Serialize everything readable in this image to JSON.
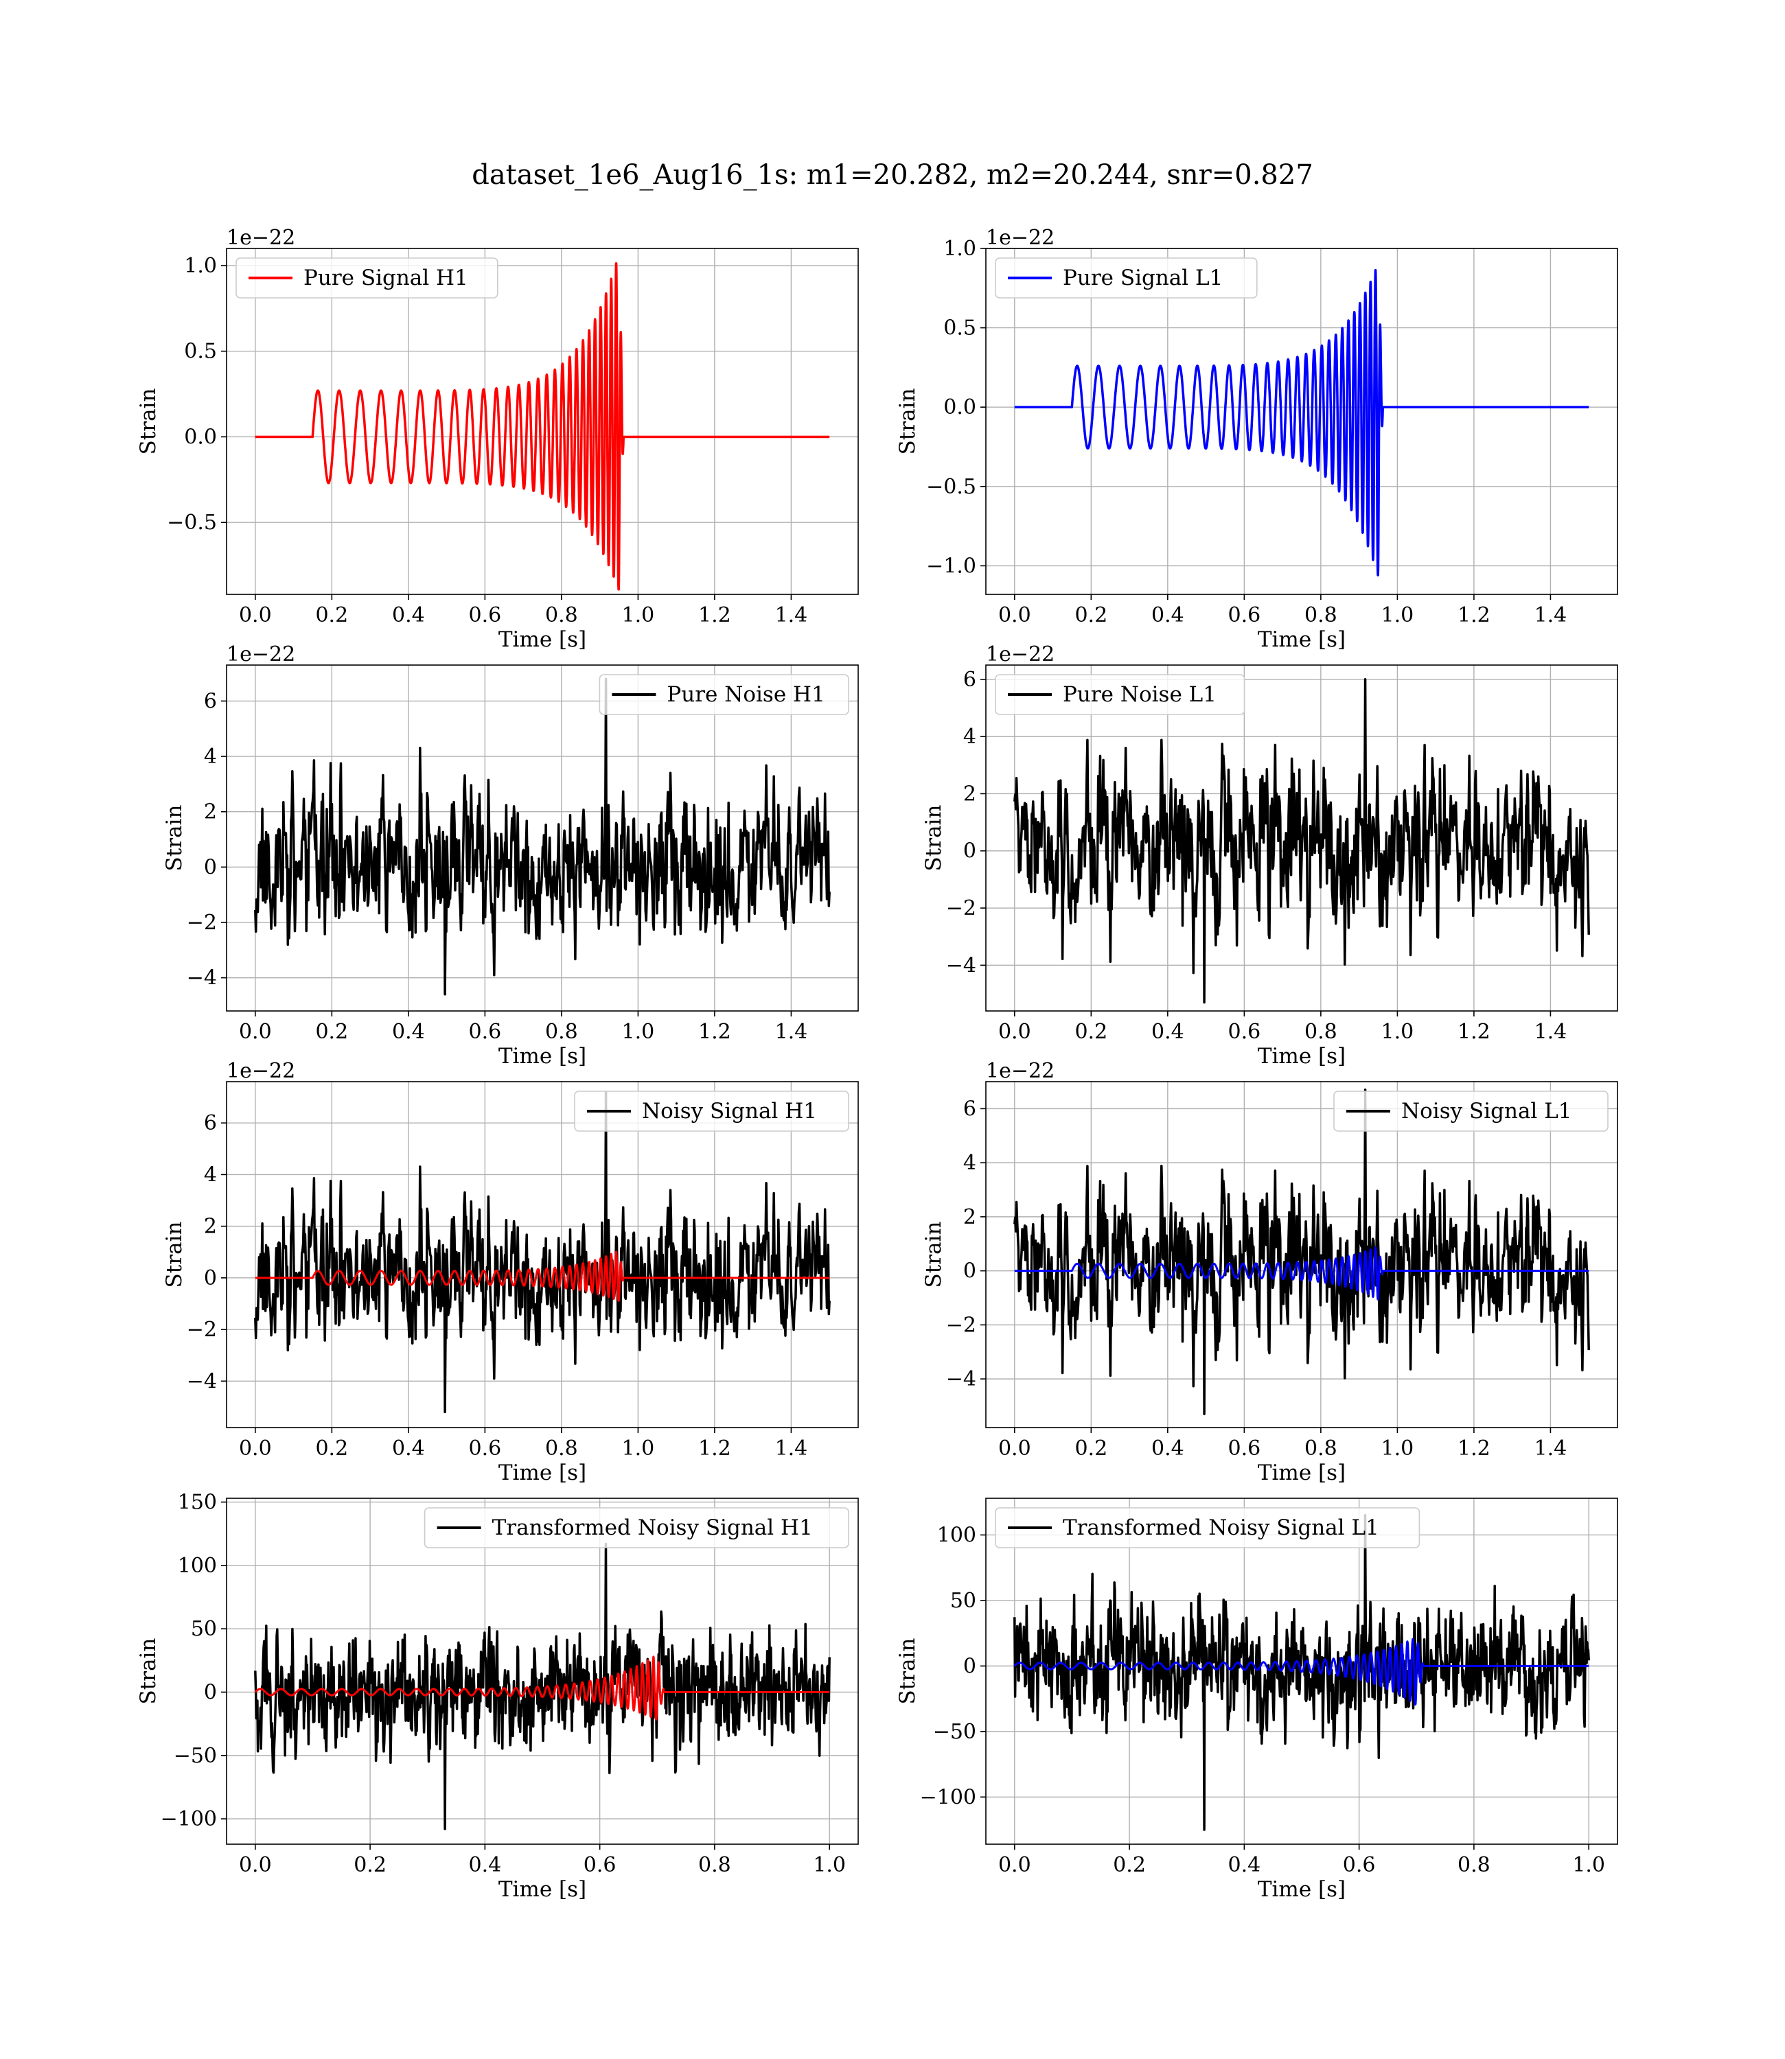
{
  "figure": {
    "title": "dataset_1e6_Aug16_1s: m1=20.282, m2=20.244, snr=0.827"
  },
  "colors": {
    "signal_h1": "#ff0000",
    "signal_l1": "#0000ff",
    "noise": "#000000"
  },
  "chart_data": [
    {
      "type": "line",
      "panel": "row1-left",
      "xlabel": "Time [s]",
      "ylabel": "Strain",
      "offset_text": "1e−22",
      "xlim": [
        -0.075,
        1.575
      ],
      "ylim": [
        -0.92,
        1.1
      ],
      "xticks": [
        0.0,
        0.2,
        0.4,
        0.6,
        0.8,
        1.0,
        1.2,
        1.4
      ],
      "xtick_labels": [
        "0.0",
        "0.2",
        "0.4",
        "0.6",
        "0.8",
        "1.0",
        "1.2",
        "1.4"
      ],
      "yticks": [
        -0.5,
        0.0,
        0.5,
        1.0
      ],
      "ytick_labels": [
        "−0.5",
        "0.0",
        "0.5",
        "1.0"
      ],
      "grid": true,
      "legend_position": "upper-left",
      "series": [
        {
          "name": "Pure Signal H1",
          "color": "#ff0000",
          "kind": "chirp",
          "x_range": [
            0.0,
            1.5
          ],
          "onset": 0.15,
          "merger": 0.95,
          "f_start": 18,
          "f_end": 80,
          "amp_start": 0.27,
          "amp_peak_pos": 1.07,
          "amp_peak_neg": 0.9,
          "width": 3.5
        }
      ]
    },
    {
      "type": "line",
      "panel": "row1-right",
      "xlabel": "Time [s]",
      "ylabel": "Strain",
      "offset_text": "1e−22",
      "xlim": [
        -0.075,
        1.575
      ],
      "ylim": [
        -1.18,
        1.0
      ],
      "xticks": [
        0.0,
        0.2,
        0.4,
        0.6,
        0.8,
        1.0,
        1.2,
        1.4
      ],
      "xtick_labels": [
        "0.0",
        "0.2",
        "0.4",
        "0.6",
        "0.8",
        "1.0",
        "1.2",
        "1.4"
      ],
      "yticks": [
        -1.0,
        -0.5,
        0.0,
        0.5,
        1.0
      ],
      "ytick_labels": [
        "−1.0",
        "−0.5",
        "0.0",
        "0.5",
        "1.0"
      ],
      "grid": true,
      "legend_position": "upper-left",
      "series": [
        {
          "name": "Pure Signal L1",
          "color": "#0000ff",
          "kind": "chirp",
          "x_range": [
            0.0,
            1.5
          ],
          "onset": 0.15,
          "merger": 0.95,
          "f_start": 18,
          "f_end": 80,
          "amp_start": 0.26,
          "amp_peak_pos": 0.91,
          "amp_peak_neg": 1.07,
          "width": 3.5
        }
      ]
    },
    {
      "type": "line",
      "panel": "row2-left",
      "xlabel": "Time [s]",
      "ylabel": "Strain",
      "offset_text": "1e−22",
      "xlim": [
        -0.075,
        1.575
      ],
      "ylim": [
        -5.2,
        7.3
      ],
      "xticks": [
        0.0,
        0.2,
        0.4,
        0.6,
        0.8,
        1.0,
        1.2,
        1.4
      ],
      "xtick_labels": [
        "0.0",
        "0.2",
        "0.4",
        "0.6",
        "0.8",
        "1.0",
        "1.2",
        "1.4"
      ],
      "yticks": [
        -4,
        -2,
        0,
        2,
        4,
        6
      ],
      "ytick_labels": [
        "−4",
        "−2",
        "0",
        "2",
        "4",
        "6"
      ],
      "grid": true,
      "legend_position": "upper-right",
      "series": [
        {
          "name": "Pure Noise H1",
          "color": "#000000",
          "kind": "noise",
          "x_range": [
            0.0,
            1.5
          ],
          "seed": 11,
          "n": 900,
          "min": -4.6,
          "max": 6.8,
          "scale": 1.55,
          "width": 3.5
        }
      ]
    },
    {
      "type": "line",
      "panel": "row2-right",
      "xlabel": "Time [s]",
      "ylabel": "Strain",
      "offset_text": "1e−22",
      "xlim": [
        -0.075,
        1.575
      ],
      "ylim": [
        -5.6,
        6.5
      ],
      "xticks": [
        0.0,
        0.2,
        0.4,
        0.6,
        0.8,
        1.0,
        1.2,
        1.4
      ],
      "xtick_labels": [
        "0.0",
        "0.2",
        "0.4",
        "0.6",
        "0.8",
        "1.0",
        "1.2",
        "1.4"
      ],
      "yticks": [
        -4,
        -2,
        0,
        2,
        4,
        6
      ],
      "ytick_labels": [
        "−4",
        "−2",
        "0",
        "2",
        "4",
        "6"
      ],
      "grid": true,
      "legend_position": "upper-left",
      "series": [
        {
          "name": "Pure Noise L1",
          "color": "#000000",
          "kind": "noise",
          "x_range": [
            0.0,
            1.5
          ],
          "seed": 23,
          "n": 900,
          "min": -5.3,
          "max": 6.0,
          "scale": 1.55,
          "width": 3.5
        }
      ]
    },
    {
      "type": "line",
      "panel": "row3-left",
      "xlabel": "Time [s]",
      "ylabel": "Strain",
      "offset_text": "1e−22",
      "xlim": [
        -0.075,
        1.575
      ],
      "ylim": [
        -5.8,
        7.6
      ],
      "xticks": [
        0.0,
        0.2,
        0.4,
        0.6,
        0.8,
        1.0,
        1.2,
        1.4
      ],
      "xtick_labels": [
        "0.0",
        "0.2",
        "0.4",
        "0.6",
        "0.8",
        "1.0",
        "1.2",
        "1.4"
      ],
      "yticks": [
        -4,
        -2,
        0,
        2,
        4,
        6
      ],
      "ytick_labels": [
        "−4",
        "−2",
        "0",
        "2",
        "4",
        "6"
      ],
      "grid": true,
      "legend_position": "upper-right",
      "series": [
        {
          "name": "Noisy Signal H1",
          "color": "#000000",
          "kind": "noise",
          "x_range": [
            0.0,
            1.5
          ],
          "seed": 11,
          "n": 900,
          "min": -5.2,
          "max": 7.2,
          "scale": 1.55,
          "width": 3.5
        },
        {
          "color": "#ff0000",
          "kind": "chirp",
          "x_range": [
            0.0,
            1.5
          ],
          "onset": 0.15,
          "merger": 0.95,
          "f_start": 18,
          "f_end": 80,
          "amp_start": 0.27,
          "amp_peak_pos": 1.07,
          "amp_peak_neg": 0.9,
          "width": 3.0
        }
      ]
    },
    {
      "type": "line",
      "panel": "row3-right",
      "xlabel": "Time [s]",
      "ylabel": "Strain",
      "offset_text": "1e−22",
      "xlim": [
        -0.075,
        1.575
      ],
      "ylim": [
        -5.8,
        7.0
      ],
      "xticks": [
        0.0,
        0.2,
        0.4,
        0.6,
        0.8,
        1.0,
        1.2,
        1.4
      ],
      "xtick_labels": [
        "0.0",
        "0.2",
        "0.4",
        "0.6",
        "0.8",
        "1.0",
        "1.2",
        "1.4"
      ],
      "yticks": [
        -4,
        -2,
        0,
        2,
        4,
        6
      ],
      "ytick_labels": [
        "−4",
        "−2",
        "0",
        "2",
        "4",
        "6"
      ],
      "grid": true,
      "legend_position": "upper-right",
      "series": [
        {
          "name": "Noisy Signal L1",
          "color": "#000000",
          "kind": "noise",
          "x_range": [
            0.0,
            1.5
          ],
          "seed": 23,
          "n": 900,
          "min": -5.3,
          "max": 6.7,
          "scale": 1.55,
          "width": 3.5
        },
        {
          "color": "#0000ff",
          "kind": "chirp",
          "x_range": [
            0.0,
            1.5
          ],
          "onset": 0.15,
          "merger": 0.95,
          "f_start": 18,
          "f_end": 80,
          "amp_start": 0.26,
          "amp_peak_pos": 0.91,
          "amp_peak_neg": 1.07,
          "width": 3.0
        }
      ]
    },
    {
      "type": "line",
      "panel": "row4-left",
      "xlabel": "Time [s]",
      "ylabel": "Strain",
      "offset_text": "",
      "xlim": [
        -0.05,
        1.05
      ],
      "ylim": [
        -120,
        153
      ],
      "xticks": [
        0.0,
        0.2,
        0.4,
        0.6,
        0.8,
        1.0
      ],
      "xtick_labels": [
        "0.0",
        "0.2",
        "0.4",
        "0.6",
        "0.8",
        "1.0"
      ],
      "yticks": [
        -100,
        -50,
        0,
        50,
        100,
        150
      ],
      "ytick_labels": [
        "−100",
        "−50",
        "0",
        "50",
        "100",
        "150"
      ],
      "grid": true,
      "legend_position": "upper-right",
      "series": [
        {
          "name": "Transformed Noisy Signal H1",
          "color": "#000000",
          "kind": "noise",
          "x_range": [
            0.0,
            1.0
          ],
          "seed": 37,
          "n": 1100,
          "min": -108,
          "max": 117,
          "scale": 26,
          "width": 3.5
        },
        {
          "color": "#ff0000",
          "kind": "chirp",
          "x_range": [
            0.0,
            1.0
          ],
          "onset": 0.0,
          "merger": 0.7,
          "f_start": 28,
          "f_end": 110,
          "amp_start": 2.5,
          "amp_peak_pos": 30,
          "amp_peak_neg": 22,
          "width": 3.0
        }
      ]
    },
    {
      "type": "line",
      "panel": "row4-right",
      "xlabel": "Time [s]",
      "ylabel": "Strain",
      "offset_text": "",
      "xlim": [
        -0.05,
        1.05
      ],
      "ylim": [
        -136,
        128
      ],
      "xticks": [
        0.0,
        0.2,
        0.4,
        0.6,
        0.8,
        1.0
      ],
      "xtick_labels": [
        "0.0",
        "0.2",
        "0.4",
        "0.6",
        "0.8",
        "1.0"
      ],
      "yticks": [
        -100,
        -50,
        0,
        50,
        100
      ],
      "ytick_labels": [
        "−100",
        "−50",
        "0",
        "50",
        "100"
      ],
      "grid": true,
      "legend_position": "upper-left",
      "series": [
        {
          "name": "Transformed Noisy Signal L1",
          "color": "#000000",
          "kind": "noise",
          "x_range": [
            0.0,
            1.0
          ],
          "seed": 53,
          "n": 1100,
          "min": -125,
          "max": 115,
          "scale": 26,
          "width": 3.5
        },
        {
          "color": "#0000ff",
          "kind": "chirp",
          "x_range": [
            0.0,
            1.0
          ],
          "onset": 0.0,
          "merger": 0.7,
          "f_start": 28,
          "f_end": 110,
          "amp_start": 2.5,
          "amp_peak_pos": 22,
          "amp_peak_neg": 30,
          "width": 3.0
        }
      ]
    }
  ]
}
